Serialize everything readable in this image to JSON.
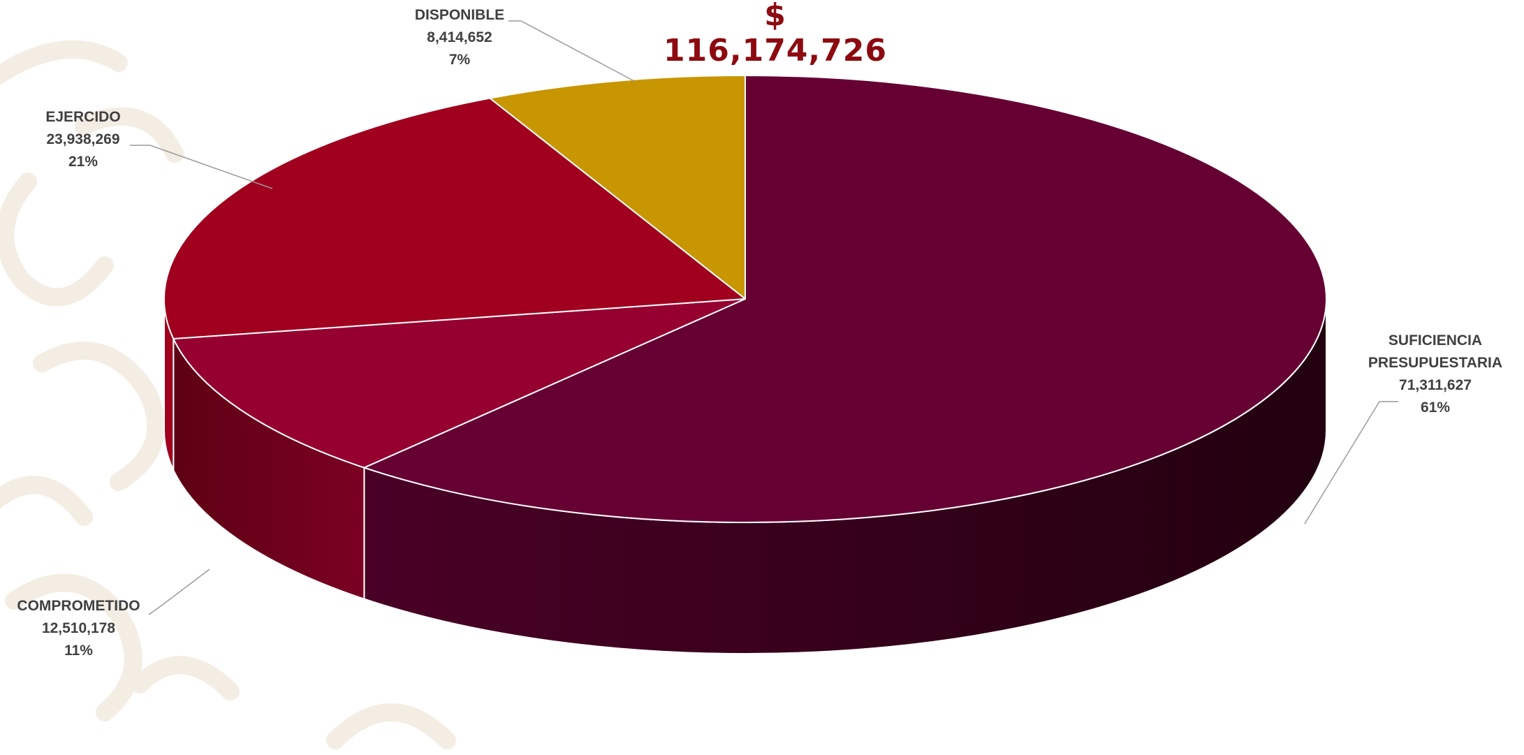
{
  "chart_data": {
    "type": "pie",
    "title": "$ 116,174,726",
    "slices": [
      {
        "label": "DISPONIBLE",
        "value": 8414652,
        "value_label": "8,414,652",
        "pct_label": "7%",
        "color": "#c89600"
      },
      {
        "label": "SUFICIENCIA PRESUPUESTARIA",
        "label_lines": [
          "SUFICIENCIA",
          "PRESUPUESTARIA"
        ],
        "value": 71311627,
        "value_label": "71,311,627",
        "pct_label": "61%",
        "color": "#660033"
      },
      {
        "label": "COMPROMETIDO",
        "value": 12510178,
        "value_label": "12,510,178",
        "pct_label": "11%",
        "color": "#960030"
      },
      {
        "label": "EJERCIDO",
        "value": 23938269,
        "value_label": "23,938,269",
        "pct_label": "21%",
        "color": "#a0001e"
      }
    ],
    "legend": "none",
    "style": "3d"
  }
}
